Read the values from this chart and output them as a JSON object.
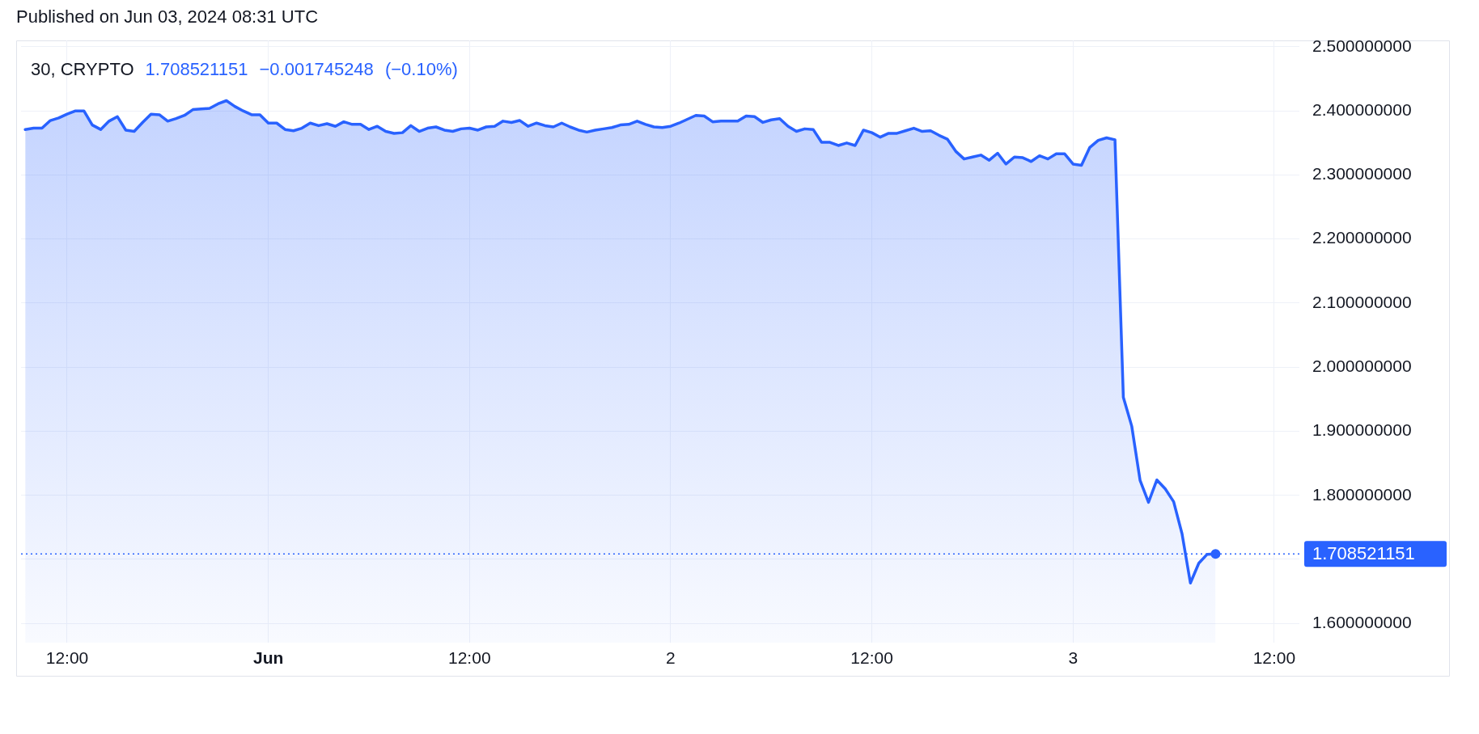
{
  "chart_data": {
    "type": "area",
    "title": "30, CRYPTO",
    "subtitle": "1.708521151 −0.001745248 (−0.10%)",
    "annotations": [
      "Published on Jun 03, 2024 08:31 UTC"
    ],
    "x": [
      "2024-05-31T09:30",
      "2024-05-31T10:00",
      "2024-05-31T10:30",
      "2024-05-31T11:00",
      "2024-05-31T11:30",
      "2024-05-31T12:00",
      "2024-05-31T12:30",
      "2024-05-31T13:00",
      "2024-05-31T13:30",
      "2024-05-31T14:00",
      "2024-05-31T14:30",
      "2024-05-31T15:00",
      "2024-05-31T15:30",
      "2024-05-31T16:00",
      "2024-05-31T16:30",
      "2024-05-31T17:00",
      "2024-05-31T17:30",
      "2024-05-31T18:00",
      "2024-05-31T18:30",
      "2024-05-31T19:00",
      "2024-05-31T19:30",
      "2024-05-31T20:00",
      "2024-05-31T20:30",
      "2024-05-31T21:00",
      "2024-05-31T21:30",
      "2024-05-31T22:00",
      "2024-05-31T22:30",
      "2024-05-31T23:00",
      "2024-05-31T23:30",
      "2024-06-01T00:00",
      "2024-06-01T00:30",
      "2024-06-01T01:00",
      "2024-06-01T01:30",
      "2024-06-01T02:00",
      "2024-06-01T02:30",
      "2024-06-01T03:00",
      "2024-06-01T03:30",
      "2024-06-01T04:00",
      "2024-06-01T04:30",
      "2024-06-01T05:00",
      "2024-06-01T05:30",
      "2024-06-01T06:00",
      "2024-06-01T06:30",
      "2024-06-01T07:00",
      "2024-06-01T07:30",
      "2024-06-01T08:00",
      "2024-06-01T08:30",
      "2024-06-01T09:00",
      "2024-06-01T09:30",
      "2024-06-01T10:00",
      "2024-06-01T10:30",
      "2024-06-01T11:00",
      "2024-06-01T11:30",
      "2024-06-01T12:00",
      "2024-06-01T12:30",
      "2024-06-01T13:00",
      "2024-06-01T13:30",
      "2024-06-01T14:00",
      "2024-06-01T14:30",
      "2024-06-01T15:00",
      "2024-06-01T15:30",
      "2024-06-01T16:00",
      "2024-06-01T16:30",
      "2024-06-01T17:00",
      "2024-06-01T17:30",
      "2024-06-01T18:00",
      "2024-06-01T18:30",
      "2024-06-01T19:00",
      "2024-06-01T19:30",
      "2024-06-01T20:00",
      "2024-06-01T20:30",
      "2024-06-01T21:00",
      "2024-06-01T21:30",
      "2024-06-01T22:00",
      "2024-06-01T22:30",
      "2024-06-01T23:00",
      "2024-06-01T23:30",
      "2024-06-02T00:00",
      "2024-06-02T00:30",
      "2024-06-02T01:00",
      "2024-06-02T01:30",
      "2024-06-02T02:00",
      "2024-06-02T02:30",
      "2024-06-02T03:00",
      "2024-06-02T03:30",
      "2024-06-02T04:00",
      "2024-06-02T04:30",
      "2024-06-02T05:00",
      "2024-06-02T05:30",
      "2024-06-02T06:00",
      "2024-06-02T06:30",
      "2024-06-02T07:00",
      "2024-06-02T07:30",
      "2024-06-02T08:00",
      "2024-06-02T08:30",
      "2024-06-02T09:00",
      "2024-06-02T09:30",
      "2024-06-02T10:00",
      "2024-06-02T10:30",
      "2024-06-02T11:00",
      "2024-06-02T11:30",
      "2024-06-02T12:00",
      "2024-06-02T12:30",
      "2024-06-02T13:00",
      "2024-06-02T13:30",
      "2024-06-02T14:00",
      "2024-06-02T14:30",
      "2024-06-02T15:00",
      "2024-06-02T15:30",
      "2024-06-02T16:00",
      "2024-06-02T16:30",
      "2024-06-02T17:00",
      "2024-06-02T17:30",
      "2024-06-02T18:00",
      "2024-06-02T18:30",
      "2024-06-02T19:00",
      "2024-06-02T19:30",
      "2024-06-02T20:00",
      "2024-06-02T20:30",
      "2024-06-02T21:00",
      "2024-06-02T21:30",
      "2024-06-02T22:00",
      "2024-06-02T22:30",
      "2024-06-02T23:00",
      "2024-06-02T23:30",
      "2024-06-03T00:00",
      "2024-06-03T00:30",
      "2024-06-03T01:00",
      "2024-06-03T01:30",
      "2024-06-03T02:00",
      "2024-06-03T02:30",
      "2024-06-03T03:00",
      "2024-06-03T03:30",
      "2024-06-03T04:00",
      "2024-06-03T04:30",
      "2024-06-03T05:00",
      "2024-06-03T05:30",
      "2024-06-03T06:00",
      "2024-06-03T06:30",
      "2024-06-03T07:00",
      "2024-06-03T07:30",
      "2024-06-03T08:00",
      "2024-06-03T08:30"
    ],
    "series": [
      {
        "color": "#2962ff",
        "values": [
          2.371,
          2.373,
          2.373,
          2.385,
          2.389,
          2.395,
          2.4,
          2.4,
          2.378,
          2.371,
          2.384,
          2.391,
          2.37,
          2.368,
          2.382,
          2.395,
          2.394,
          2.384,
          2.388,
          2.393,
          2.402,
          2.403,
          2.404,
          2.411,
          2.416,
          2.407,
          2.4,
          2.394,
          2.394,
          2.381,
          2.381,
          2.371,
          2.369,
          2.373,
          2.381,
          2.377,
          2.38,
          2.376,
          2.383,
          2.379,
          2.379,
          2.371,
          2.376,
          2.368,
          2.365,
          2.366,
          2.377,
          2.368,
          2.373,
          2.375,
          2.37,
          2.368,
          2.372,
          2.373,
          2.37,
          2.375,
          2.376,
          2.384,
          2.382,
          2.385,
          2.376,
          2.381,
          2.377,
          2.375,
          2.381,
          2.375,
          2.37,
          2.367,
          2.37,
          2.372,
          2.374,
          2.378,
          2.379,
          2.384,
          2.379,
          2.375,
          2.374,
          2.376,
          2.381,
          2.387,
          2.393,
          2.392,
          2.383,
          2.384,
          2.384,
          2.384,
          2.392,
          2.391,
          2.382,
          2.386,
          2.388,
          2.376,
          2.368,
          2.372,
          2.371,
          2.351,
          2.351,
          2.346,
          2.35,
          2.346,
          2.37,
          2.366,
          2.359,
          2.365,
          2.365,
          2.369,
          2.373,
          2.368,
          2.369,
          2.362,
          2.356,
          2.337,
          2.325,
          2.328,
          2.331,
          2.323,
          2.334,
          2.317,
          2.328,
          2.327,
          2.321,
          2.33,
          2.325,
          2.333,
          2.333,
          2.317,
          2.315,
          2.343,
          2.354,
          2.358,
          2.355,
          1.953,
          1.908,
          1.823,
          1.789,
          1.824,
          1.81,
          1.79,
          1.74,
          1.663,
          1.694,
          1.708,
          1.708521151
        ]
      }
    ],
    "xlim": [
      "2024-05-31T09:15",
      "2024-06-03T13:30"
    ],
    "xticks": [
      {
        "value": "2024-05-31T12:00",
        "label": "12:00"
      },
      {
        "value": "2024-06-01T00:00",
        "label": "Jun"
      },
      {
        "value": "2024-06-01T12:00",
        "label": "12:00"
      },
      {
        "value": "2024-06-02T00:00",
        "label": "2"
      },
      {
        "value": "2024-06-02T12:00",
        "label": "12:00"
      },
      {
        "value": "2024-06-03T00:00",
        "label": "3"
      },
      {
        "value": "2024-06-03T12:00",
        "label": "12:00"
      }
    ],
    "ylim": [
      1.57,
      2.51
    ],
    "yticks": [
      {
        "value": 1.6,
        "label": "1.600000000"
      },
      {
        "value": 1.7,
        "label": null
      },
      {
        "value": 1.8,
        "label": "1.800000000"
      },
      {
        "value": 1.9,
        "label": "1.900000000"
      },
      {
        "value": 2.0,
        "label": "2.000000000"
      },
      {
        "value": 2.1,
        "label": "2.100000000"
      },
      {
        "value": 2.2,
        "label": "2.200000000"
      },
      {
        "value": 2.3,
        "label": "2.300000000"
      },
      {
        "value": 2.4,
        "label": "2.400000000"
      },
      {
        "value": 2.5,
        "label": "2.500000000"
      }
    ],
    "grid": true,
    "ref_lines": [
      {
        "axis": "y",
        "value": 1.708521151,
        "label": "1.708521151",
        "color": "#2962ff",
        "line_style": "dotted"
      }
    ]
  }
}
